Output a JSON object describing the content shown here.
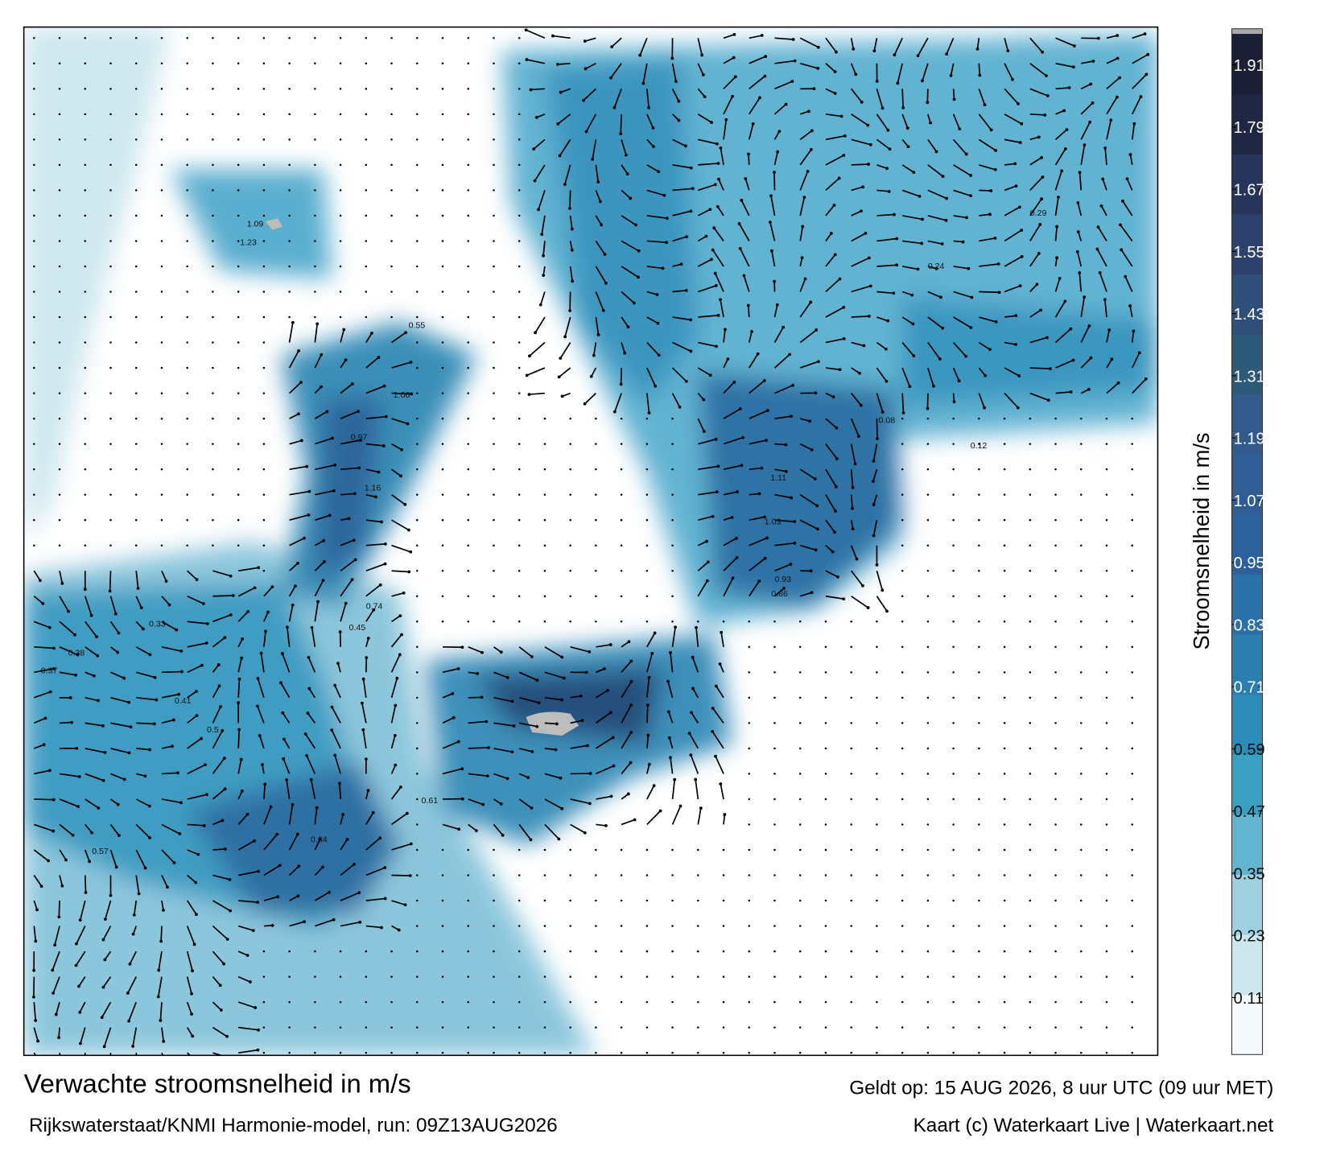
{
  "map": {
    "title": "Verwachte stroomsnelheid in m/s",
    "subtitle": "Rijkswaterstaat/KNMI Harmonie-model, run: 09Z13AUG2026",
    "valid": "Geldt op: 15 AUG 2026, 8 uur UTC (09 uur MET)",
    "credit": "Kaart (c) Waterkaart Live | Waterkaart.net",
    "colorbar": {
      "label": "Stroomsnelheid in m/s",
      "lim": [
        0,
        1.97
      ],
      "ticks": [
        0.11,
        0.23,
        0.35,
        0.47,
        0.59,
        0.71,
        0.83,
        0.95,
        1.07,
        1.19,
        1.31,
        1.43,
        1.55,
        1.67,
        1.79,
        1.91
      ],
      "colors": [
        "#f4f9fb",
        "#cde6ee",
        "#9fd0e0",
        "#63b5cf",
        "#3aa0c2",
        "#2b8db5",
        "#2a7fae",
        "#2b70a6",
        "#2c619c",
        "#2f5d94",
        "#335a8c",
        "#2c5a78",
        "#2d4f7a",
        "#2c426c",
        "#27355a",
        "#1f2745",
        "#1a1f36"
      ]
    },
    "labels": [
      "1.09",
      "1.23",
      "1.06",
      "1.16",
      "0.97",
      "1.11",
      "1.03",
      "0.93",
      "0.86",
      "0.61",
      "0.55",
      "0.41",
      "0.37",
      "0.38",
      "0.5",
      "0.57",
      "0.33",
      "0.45",
      "0.24",
      "0.12",
      "0.08",
      "0.29",
      "0.74",
      "0.84"
    ]
  }
}
